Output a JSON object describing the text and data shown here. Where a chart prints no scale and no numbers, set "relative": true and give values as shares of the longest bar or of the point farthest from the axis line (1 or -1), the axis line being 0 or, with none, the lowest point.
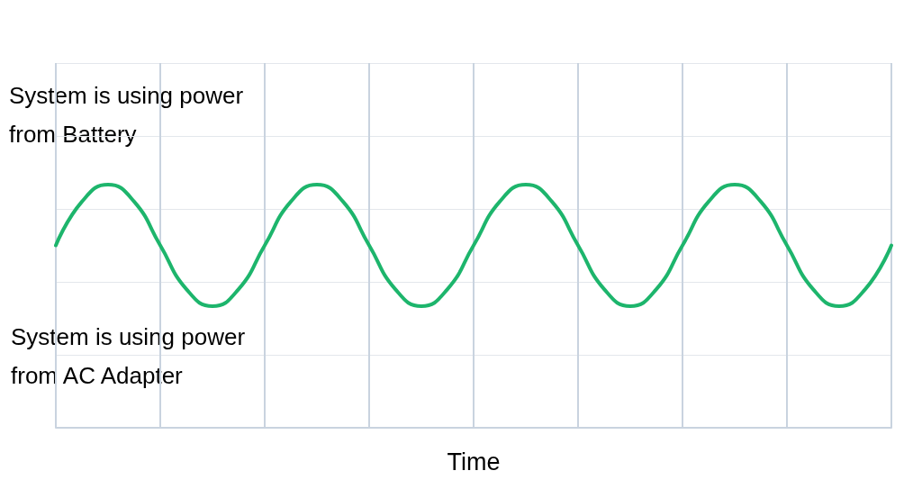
{
  "chart_data": {
    "type": "line",
    "relative": true,
    "xlabel": "Time",
    "grid": true,
    "marker": "none",
    "line_style": "solid",
    "categories": [
      null,
      null,
      null,
      null,
      null,
      null,
      null,
      null,
      null,
      null,
      null,
      null,
      null,
      null,
      null,
      null,
      null,
      null,
      null,
      null,
      null,
      null,
      null,
      null,
      null,
      null,
      null,
      null,
      null,
      null,
      null,
      null,
      null
    ],
    "series": [
      {
        "color": "#1db56c",
        "values": [
          0.75,
          0.93,
          1,
          0.93,
          0.75,
          0.57,
          0.5,
          0.57,
          0.75,
          0.93,
          1,
          0.93,
          0.75,
          0.57,
          0.5,
          0.57,
          0.75,
          0.93,
          1,
          0.93,
          0.75,
          0.57,
          0.5,
          0.57,
          0.75,
          0.93,
          1,
          0.93,
          0.75,
          0.57,
          0.5,
          0.57,
          0.75
        ]
      }
    ],
    "annotations": [
      "System is using power from Battery",
      "System is using power from AC Adapter"
    ]
  }
}
